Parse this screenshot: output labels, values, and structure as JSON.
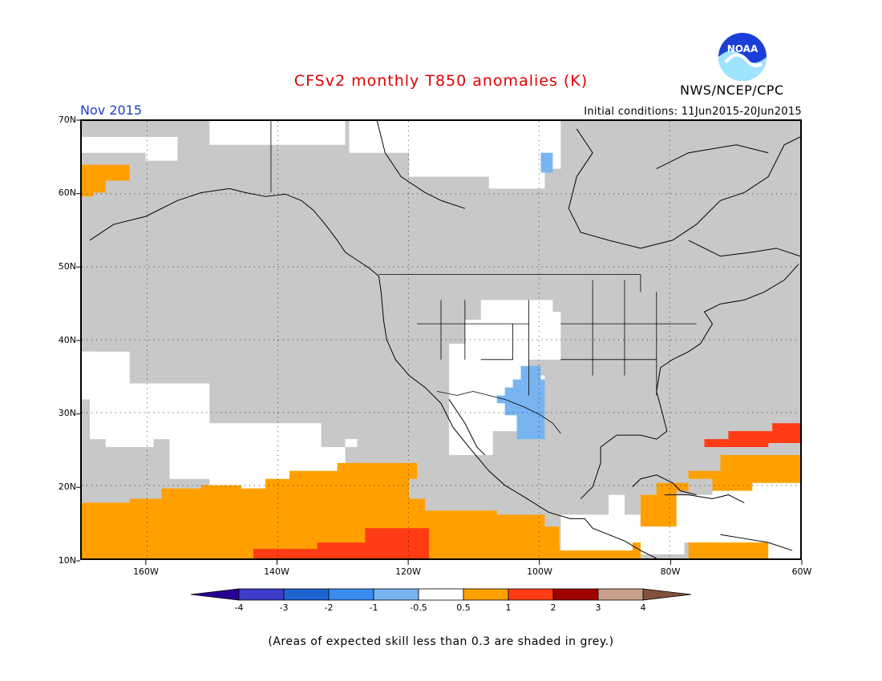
{
  "header": {
    "title": "CFSv2 monthly T850 anomalies (K)",
    "agency": "NWS/NCEP/CPC",
    "logo_text": "NOAA",
    "month": "Nov 2015",
    "initial_conditions": "Initial conditions: 11Jun2015-20Jun2015"
  },
  "axes": {
    "lat_labels": [
      "70N",
      "60N",
      "50N",
      "40N",
      "30N",
      "20N",
      "10N"
    ],
    "lon_labels": [
      "160W",
      "140W",
      "120W",
      "100W",
      "80W",
      "60W"
    ],
    "lat_range": [
      10,
      70
    ],
    "lon_range": [
      -170,
      -60
    ]
  },
  "colorbar": {
    "labels": [
      "-4",
      "-3",
      "-2",
      "-1",
      "-0.5",
      "0.5",
      "1",
      "2",
      "3",
      "4"
    ],
    "colors": [
      "#280096",
      "#3c3cc8",
      "#1e64d2",
      "#3c8cf0",
      "#78b4f0",
      "#ffffff",
      "#ffa000",
      "#ff3c14",
      "#a00000",
      "#c8a08c",
      "#82503c"
    ]
  },
  "colors": {
    "grey": "#c8c8c8",
    "orange": "#ffa000",
    "red": "#ff3c14",
    "lightblue": "#78b4f0",
    "white": "#ffffff",
    "title_red": "#e00000",
    "month_blue": "#1d3fd0"
  },
  "footer": {
    "skill_note": "(Areas of expected skill less than 0.3 are shaded in grey.)"
  }
}
